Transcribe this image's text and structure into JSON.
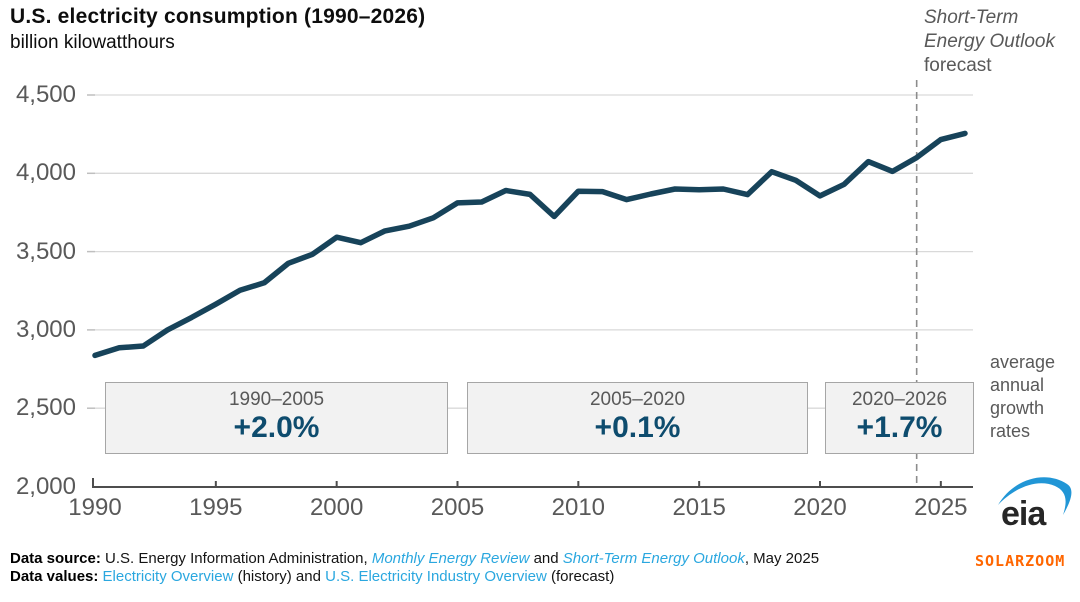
{
  "header": {
    "title": "U.S. electricity consumption (1990–2026)",
    "subtitle": "billion kilowatthours"
  },
  "colors": {
    "line": "#17435a",
    "accent_rate_text": "#0e4c6e",
    "link_blue": "#2aa7df",
    "gray_text": "#595959",
    "grid": "#d9d9d9",
    "axis": "#4d4d4d",
    "dashed_line": "#8c8c8c",
    "box_fill": "#f2f2f2",
    "box_border": "#a6a6a6",
    "watermark_orange": "#ff6600",
    "logo_blue": "#2196d6"
  },
  "chart_data": {
    "type": "line",
    "title": "U.S. electricity consumption (1990–2026)",
    "ylabel": "billion kilowatthours",
    "xlabel": "",
    "ylim": [
      2000,
      4500
    ],
    "yticks": [
      2000,
      2500,
      3000,
      3500,
      4000,
      4500
    ],
    "xticks": [
      1990,
      1995,
      2000,
      2005,
      2010,
      2015,
      2020,
      2025
    ],
    "grid": "on",
    "legend": "none",
    "forecast_divider_year": 2024,
    "years": [
      1990,
      1991,
      1992,
      1993,
      1994,
      1995,
      1996,
      1997,
      1998,
      1999,
      2000,
      2001,
      2002,
      2003,
      2004,
      2005,
      2006,
      2007,
      2008,
      2009,
      2010,
      2011,
      2012,
      2013,
      2014,
      2015,
      2016,
      2017,
      2018,
      2019,
      2020,
      2021,
      2022,
      2023,
      2024,
      2025,
      2026
    ],
    "values": [
      2837,
      2886,
      2897,
      3000,
      3080,
      3164,
      3253,
      3301,
      3425,
      3483,
      3592,
      3557,
      3632,
      3662,
      3716,
      3811,
      3817,
      3890,
      3865,
      3724,
      3886,
      3883,
      3832,
      3868,
      3900,
      3895,
      3900,
      3864,
      4010,
      3955,
      3856,
      3930,
      4075,
      4012,
      4100,
      4215,
      4255
    ],
    "forecast_label": {
      "line1": "Short-Term",
      "line2": "Energy Outlook",
      "line3": "forecast"
    },
    "growth_boxes": [
      {
        "period": "1990–2005",
        "rate": "+2.0%"
      },
      {
        "period": "2005–2020",
        "rate": "+0.1%"
      },
      {
        "period": "2020–2026",
        "rate": "+1.7%"
      }
    ],
    "side_label": "average annual growth rates"
  },
  "footer": {
    "source_label": "Data source: ",
    "source_text": "U.S. Energy Information Administration, ",
    "source_link1": "Monthly Energy Review",
    "source_and": " and ",
    "source_link2": "Short-Term Energy Outlook",
    "source_date": ", May 2025",
    "values_label": "Data values: ",
    "values_link1": "Electricity Overview",
    "values_mid": " (history) and ",
    "values_link2": "U.S. Electricity Industry Overview",
    "values_post": " (forecast)"
  },
  "logo": {
    "text": "eia"
  },
  "watermark": "SOLARZOOM"
}
